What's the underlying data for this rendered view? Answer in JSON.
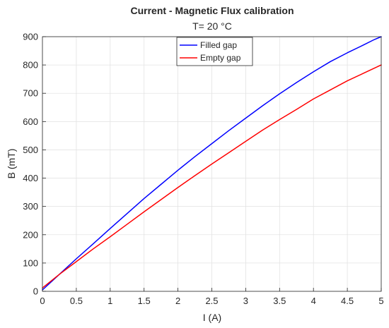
{
  "chart_data": {
    "type": "line",
    "title": "Current - Magnetic Flux calibration",
    "subtitle": "T= 20 °C",
    "xlabel": "I (A)",
    "ylabel": "B  (mT)",
    "xlim": [
      0,
      5
    ],
    "ylim": [
      0,
      900
    ],
    "xticks": [
      0,
      0.5,
      1,
      1.5,
      2,
      2.5,
      3,
      3.5,
      4,
      4.5,
      5
    ],
    "xtick_labels": [
      "0",
      "0.5",
      "1",
      "1.5",
      "2",
      "2.5",
      "3",
      "3.5",
      "4",
      "4.5",
      "5"
    ],
    "yticks": [
      0,
      100,
      200,
      300,
      400,
      500,
      600,
      700,
      800,
      900
    ],
    "ytick_labels": [
      "0",
      "100",
      "200",
      "300",
      "400",
      "500",
      "600",
      "700",
      "800",
      "900"
    ],
    "grid": true,
    "legend_position": "top-center",
    "series": [
      {
        "name": "Filled gap",
        "color": "#0000ff",
        "x": [
          0,
          0.25,
          0.5,
          0.75,
          1,
          1.25,
          1.5,
          1.75,
          2,
          2.25,
          2.5,
          2.75,
          3,
          3.25,
          3.5,
          3.75,
          4,
          4.25,
          4.5,
          4.75,
          4.9,
          5
        ],
        "y": [
          5,
          60,
          115,
          168,
          222,
          275,
          328,
          378,
          428,
          476,
          522,
          568,
          612,
          656,
          698,
          738,
          776,
          812,
          843,
          872,
          890,
          900
        ]
      },
      {
        "name": "Empty gap",
        "color": "#ff0000",
        "x": [
          0,
          0.25,
          0.5,
          0.75,
          1,
          1.25,
          1.5,
          1.75,
          2,
          2.25,
          2.5,
          2.75,
          3,
          3.25,
          3.5,
          3.75,
          4,
          4.25,
          4.5,
          4.75,
          5
        ],
        "y": [
          12,
          60,
          105,
          150,
          193,
          237,
          281,
          324,
          367,
          409,
          450,
          490,
          530,
          570,
          607,
          643,
          680,
          712,
          744,
          772,
          800
        ]
      }
    ]
  }
}
